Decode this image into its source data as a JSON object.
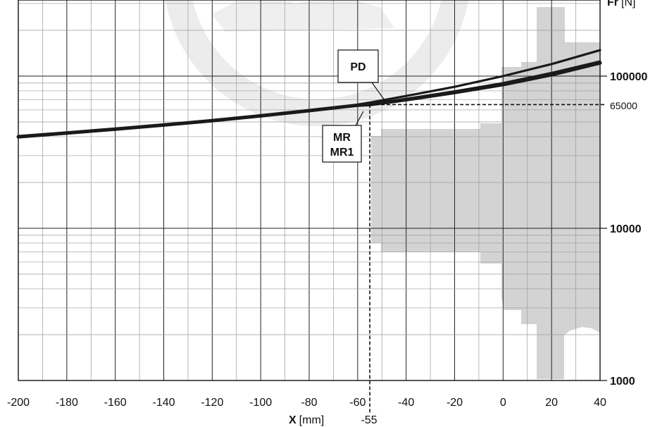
{
  "chart_data": {
    "type": "line",
    "title": "",
    "xlabel": {
      "symbol": "X",
      "unit": "[mm]"
    },
    "ylabel": {
      "symbol": "Fr",
      "unit": "[N]"
    },
    "xlim": [
      -200,
      40
    ],
    "ylim": [
      1000,
      170000
    ],
    "yscale": "log",
    "grid": true,
    "x_ticks": [
      "-200",
      "-180",
      "-160",
      "-140",
      "-120",
      "-100",
      "-80",
      "-60",
      "-40",
      "-20",
      "0",
      "20",
      "40"
    ],
    "y_ticks": [
      {
        "value": 100000,
        "label": "100000",
        "bold": true
      },
      {
        "value": 65000,
        "label": "65000",
        "bold": false
      },
      {
        "value": 10000,
        "label": "10000",
        "bold": true
      },
      {
        "value": 1000,
        "label": "1000",
        "bold": true
      }
    ],
    "series": [
      {
        "name": "MR",
        "x": [
          -200,
          -180,
          -160,
          -140,
          -120,
          -100,
          -80,
          -60,
          -55,
          -40,
          -20,
          0,
          20,
          40
        ],
        "y": [
          40000,
          42300,
          44800,
          47700,
          51000,
          54800,
          59300,
          64400,
          65000,
          70000,
          78000,
          88000,
          102000,
          122000
        ]
      },
      {
        "name": "MR1",
        "x": [
          -200,
          -180,
          -160,
          -140,
          -120,
          -100,
          -80,
          -60,
          -55,
          -40,
          -20,
          0,
          20,
          40
        ],
        "y": [
          39500,
          41900,
          44500,
          47500,
          51000,
          54900,
          59600,
          64800,
          65500,
          71000,
          79500,
          90000,
          105000,
          125000
        ]
      },
      {
        "name": "PD",
        "x": [
          -60,
          -55,
          -40,
          -20,
          0,
          20,
          40
        ],
        "y": [
          65000,
          67000,
          74000,
          85000,
          100000,
          120000,
          148000
        ]
      }
    ],
    "annotations": [
      {
        "text": "PD"
      },
      {
        "text": "MR"
      },
      {
        "text": "MR1"
      },
      {
        "type": "reference",
        "x": -55,
        "y": 65000,
        "x_label": "-55",
        "y_label": "65000"
      }
    ],
    "colors": {
      "curve": "#1a1a1a",
      "grid": "#9a9a9a",
      "major_grid": "#222222",
      "motor_silhouette": "#d3d3d3",
      "watermark": "#ececec"
    }
  }
}
